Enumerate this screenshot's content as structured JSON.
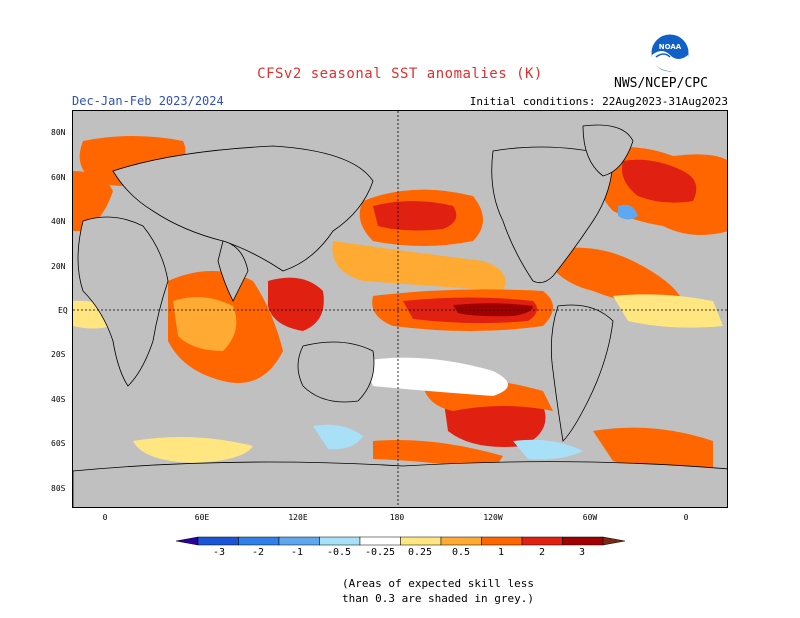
{
  "header": {
    "title": "CFSv2 seasonal SST anomalies (K)",
    "period": "Dec-Jan-Feb 2023/2024",
    "agency": "NWS/NCEP/CPC",
    "initial_conditions": "Initial conditions: 22Aug2023-31Aug2023",
    "logo_text": "NOAA"
  },
  "map": {
    "lat_labels": [
      "80N",
      "60N",
      "40N",
      "20N",
      "EQ",
      "20S",
      "40S",
      "60S",
      "80S"
    ],
    "lon_labels": [
      "0",
      "60E",
      "120E",
      "180",
      "120W",
      "60W",
      "0"
    ]
  },
  "colorbar": {
    "labels": [
      "-3",
      "-2",
      "-1",
      "-0.5",
      "-0.25",
      "0.25",
      "0.5",
      "1",
      "2",
      "3"
    ],
    "colors": [
      "#2a00a0",
      "#1a55d8",
      "#2f80e8",
      "#5fa8f0",
      "#a8e0f8",
      "#ffffff",
      "#ffe680",
      "#ffaa33",
      "#ff6600",
      "#e02010",
      "#a00000",
      "#7a2a10"
    ]
  },
  "note": {
    "line1": "(Areas of expected skill less",
    "line2": "than 0.3 are shaded in grey.)"
  }
}
